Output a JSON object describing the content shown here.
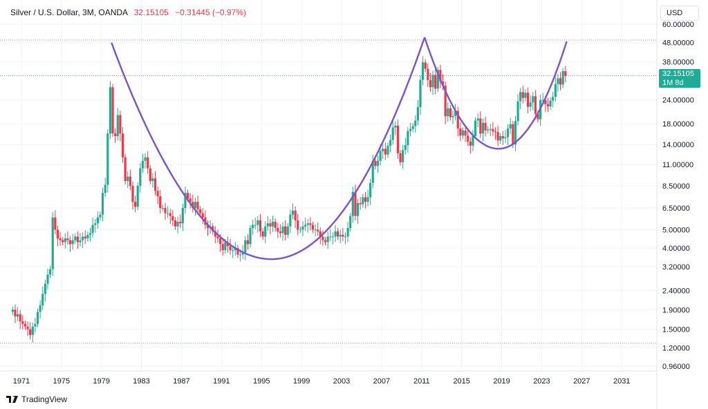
{
  "header": {
    "symbol": "Silver / U.S. Dollar, 3M, OANDA",
    "last": "32.15105",
    "change": "−0.31445 (−0.97%)",
    "currency": "USD"
  },
  "price_label": {
    "value": "32.15105",
    "countdown": "1M 8d"
  },
  "brand": "TradingView",
  "colors": {
    "up": "#22ab94",
    "down": "#f23645",
    "curve": "#7e57c2",
    "grid": "#f0f3fa"
  },
  "chart_data": {
    "type": "candlestick",
    "title": "Silver / U.S. Dollar, 3M, OANDA",
    "yscale": "log",
    "ylim": [
      0.9,
      64
    ],
    "xlim": [
      1969.5,
      2034.5
    ],
    "y_ticks": [
      "60.00000",
      "48.00000",
      "38.00000",
      "24.00000",
      "18.00000",
      "14.00000",
      "11.00000",
      "8.50000",
      "6.50000",
      "5.00000",
      "4.00000",
      "3.20000",
      "2.40000",
      "1.90000",
      "1.50000",
      "1.20000",
      "0.96000"
    ],
    "x_ticks": [
      "1971",
      "1975",
      "1979",
      "1983",
      "1987",
      "1991",
      "1995",
      "1999",
      "2003",
      "2007",
      "2011",
      "2015",
      "2019",
      "2023",
      "2027",
      "2031"
    ],
    "start_year": 1970,
    "period": "quarter",
    "first_open": 1.85,
    "quarterly_close": [
      1.9,
      1.75,
      1.8,
      1.65,
      1.6,
      1.55,
      1.5,
      1.4,
      1.55,
      1.6,
      1.85,
      2.0,
      2.3,
      2.6,
      2.9,
      3.1,
      5.8,
      5.0,
      4.5,
      4.4,
      4.3,
      4.5,
      4.4,
      4.2,
      4.4,
      4.6,
      4.3,
      4.4,
      4.6,
      4.5,
      4.7,
      4.8,
      5.3,
      5.4,
      5.8,
      6.0,
      7.8,
      8.6,
      16.0,
      28.0,
      16.0,
      15.5,
      20.0,
      16.0,
      12.0,
      9.0,
      9.5,
      8.5,
      7.0,
      6.6,
      8.5,
      10.5,
      11.5,
      12.0,
      10.5,
      9.0,
      9.3,
      8.0,
      7.5,
      6.5,
      6.5,
      6.1,
      6.1,
      5.9,
      5.6,
      5.2,
      5.5,
      5.4,
      6.5,
      7.8,
      7.3,
      7.0,
      6.5,
      7.0,
      6.4,
      6.1,
      5.8,
      5.3,
      5.1,
      5.2,
      4.9,
      4.6,
      4.5,
      4.2,
      3.9,
      4.3,
      4.1,
      3.9,
      3.9,
      4.0,
      3.7,
      3.7,
      3.8,
      4.4,
      4.2,
      5.1,
      5.3,
      5.3,
      5.6,
      4.9,
      4.6,
      5.2,
      5.4,
      5.2,
      5.5,
      5.1,
      4.9,
      4.8,
      5.2,
      4.7,
      5.2,
      6.0,
      6.3,
      5.6,
      5.0,
      5.0,
      5.2,
      5.3,
      5.4,
      5.3,
      5.0,
      5.0,
      4.9,
      4.6,
      4.4,
      4.3,
      4.6,
      4.6,
      4.6,
      4.9,
      4.6,
      4.7,
      4.6,
      4.6,
      5.1,
      5.9,
      7.9,
      5.9,
      6.9,
      6.8,
      7.4,
      7.0,
      7.4,
      8.8,
      11.5,
      10.8,
      11.5,
      12.9,
      13.3,
      12.4,
      13.8,
      14.8,
      17.2,
      17.6,
      12.6,
      11.3,
      13.1,
      13.9,
      16.5,
      16.9,
      17.5,
      18.7,
      22.0,
      30.6,
      37.8,
      35.0,
      30.5,
      28.0,
      32.5,
      27.5,
      34.5,
      30.0,
      28.5,
      19.7,
      21.7,
      19.5,
      19.8,
      21.0,
      17.0,
      15.6,
      16.6,
      15.6,
      14.5,
      13.8,
      15.5,
      18.7,
      19.2,
      16.0,
      18.2,
      16.6,
      16.8,
      16.9,
      16.4,
      16.3,
      14.7,
      15.5,
      15.1,
      15.3,
      17.0,
      17.9,
      14.0,
      18.6,
      23.6,
      26.4,
      24.6,
      26.2,
      22.1,
      23.3,
      25.1,
      20.3,
      19.0,
      24.0,
      24.0,
      22.8,
      22.2,
      23.8,
      24.9,
      29.1,
      31.2,
      28.9,
      34.0,
      32.15105
    ],
    "horizontal_lines": [
      49.5,
      1.27
    ],
    "current_price": 32.15105,
    "cup_curves": [
      {
        "left": [
          1980.0,
          48.0
        ],
        "bottom": [
          1996.0,
          3.5
        ],
        "right": [
          2011.3,
          51.2
        ]
      },
      {
        "left": [
          2011.3,
          51.2
        ],
        "bottom": [
          2018.7,
          13.3
        ],
        "right": [
          2025.5,
          48.7
        ]
      }
    ]
  }
}
